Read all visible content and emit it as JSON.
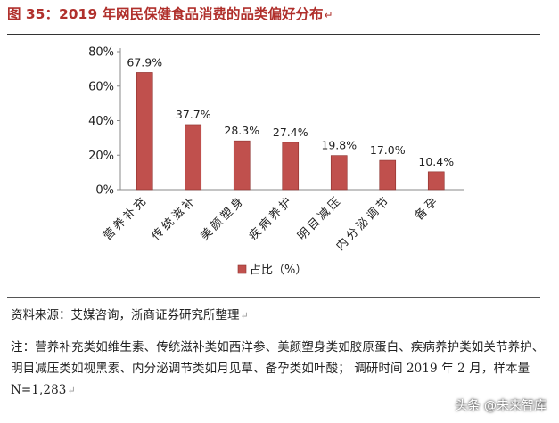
{
  "figure": {
    "title": "图 35：2019 年网民保健食品消费的品类偏好分布",
    "source": "资料来源：艾媒咨询，浙商证券研究所整理",
    "note": "注：营养补充类如维生素、传统滋补类如西洋参、美颜塑身类如胶原蛋白、疾病养护类如关节养护、明目减压类如视黑素、内分泌调节类如月见草、备孕类如叶酸； 调研时间 2019 年 2 月，样本量 N=1,283",
    "watermark": "头条 @未来智库"
  },
  "chart_data": {
    "type": "bar",
    "categories": [
      "营养补充",
      "传统滋补",
      "美颜塑身",
      "疾病养护",
      "明目减压",
      "内分泌调节",
      "备孕"
    ],
    "values": [
      67.9,
      37.7,
      28.3,
      27.4,
      19.8,
      17.0,
      10.4
    ],
    "data_labels": [
      "67.9%",
      "37.7%",
      "28.3%",
      "27.4%",
      "19.8%",
      "17.0%",
      "10.4%"
    ],
    "series": [
      {
        "name": "占比（%）",
        "values": [
          67.9,
          37.7,
          28.3,
          27.4,
          19.8,
          17.0,
          10.4
        ]
      }
    ],
    "yticks": [
      "0%",
      "20%",
      "40%",
      "60%",
      "80%"
    ],
    "ylim": [
      0,
      80
    ],
    "legend_position": "bottom",
    "bar_color": "#c0504d",
    "grid": false
  }
}
